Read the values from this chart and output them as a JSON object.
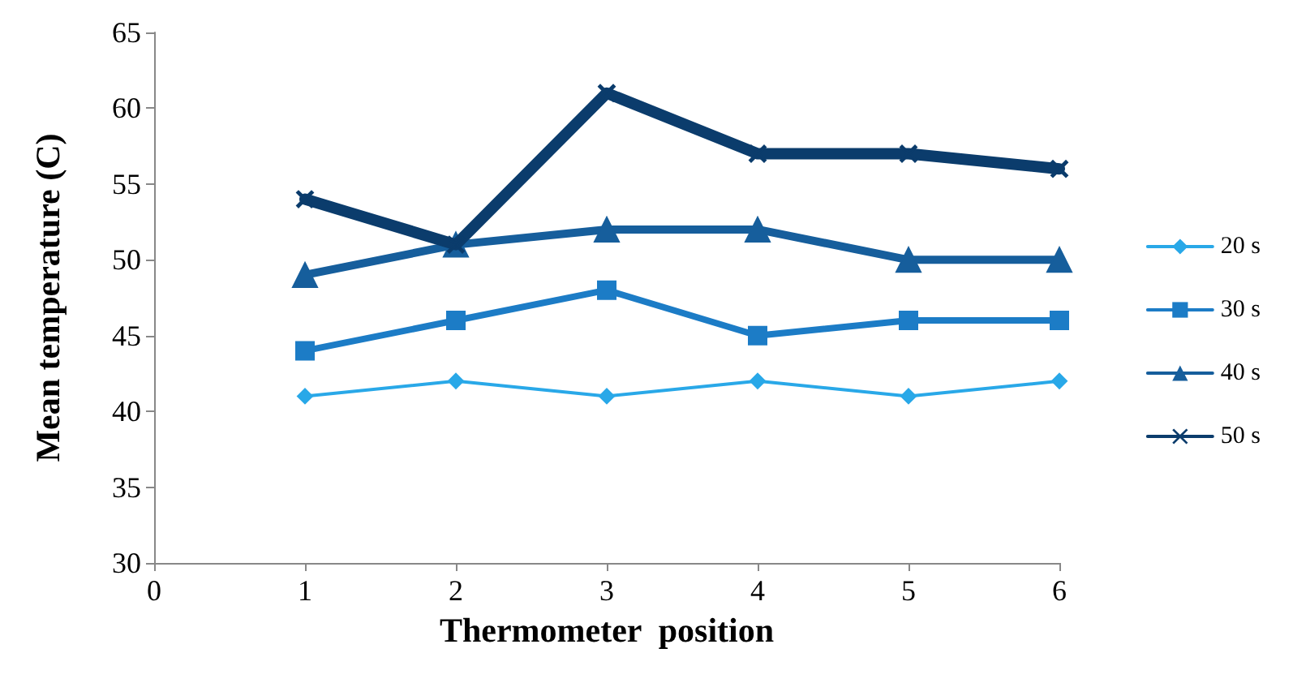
{
  "chart_data": {
    "type": "line",
    "xlabel": "Thermometer  position",
    "ylabel": "Mean temperature (C)",
    "x": [
      1,
      2,
      3,
      4,
      5,
      6
    ],
    "series": [
      {
        "name": "20 s",
        "color": "#29a8e8",
        "marker": "diamond",
        "values": [
          41,
          42,
          41,
          42,
          41,
          42
        ]
      },
      {
        "name": "30 s",
        "color": "#1c7cc6",
        "marker": "square",
        "values": [
          44,
          46,
          48,
          45,
          46,
          46
        ]
      },
      {
        "name": "40 s",
        "color": "#165e9c",
        "marker": "triangle",
        "values": [
          49,
          51,
          52,
          52,
          50,
          50
        ]
      },
      {
        "name": "50 s",
        "color": "#0b3c6c",
        "marker": "cross",
        "values": [
          54,
          51,
          61,
          57,
          57,
          56
        ]
      }
    ],
    "xlim": [
      0,
      6
    ],
    "xticks": [
      0,
      1,
      2,
      3,
      4,
      5,
      6
    ],
    "ylim": [
      30,
      65
    ],
    "yticks": [
      30,
      35,
      40,
      45,
      50,
      55,
      60,
      65
    ],
    "grid": false,
    "legend": "right",
    "line_style": "solid"
  }
}
